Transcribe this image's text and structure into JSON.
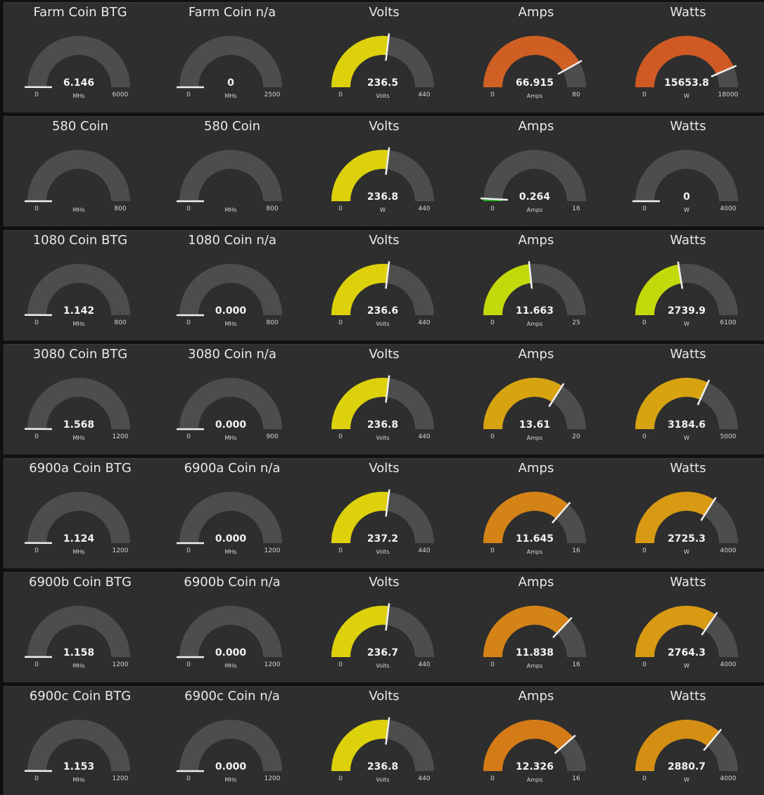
{
  "colors": {
    "background": "#2e2e2e",
    "track": "#4d4d4d",
    "needle": "#f0f0f0",
    "green": "#1faa1f",
    "yellow": "#dcd10a",
    "lime": "#c4d90a",
    "amber": "#d7a310",
    "orange": "#d48317",
    "red_orange": "#cf5a23"
  },
  "groups": [
    {
      "widgets": [
        {
          "title": "Farm Coin BTG",
          "value": 6.146,
          "value_label": "6.146",
          "units": "MHs",
          "min": 0,
          "max": 6000,
          "min_label": "0",
          "max_label": "6000",
          "color": "#4d4d4d"
        },
        {
          "title": "Farm Coin n/a",
          "value": 0,
          "value_label": "0",
          "units": "MHs",
          "min": 0,
          "max": 2500,
          "min_label": "0",
          "max_label": "2500",
          "color": "#4d4d4d"
        },
        {
          "title": "Volts",
          "value": 236.5,
          "value_label": "236.5",
          "units": "Volts",
          "min": 0,
          "max": 440,
          "min_label": "0",
          "max_label": "440",
          "color": "#dcd10a"
        },
        {
          "title": "Amps",
          "value": 66.915,
          "value_label": "66.915",
          "units": "Amps",
          "min": 0,
          "max": 80,
          "min_label": "0",
          "max_label": "80",
          "color": "#cf5f22"
        },
        {
          "title": "Watts",
          "value": 15653.8,
          "value_label": "15653.8",
          "units": "W",
          "min": 0,
          "max": 18000,
          "min_label": "0",
          "max_label": "18000",
          "color": "#cf5a23"
        }
      ]
    },
    {
      "widgets": [
        {
          "title": "580 Coin",
          "value": 0,
          "value_label": "",
          "units": "MHs",
          "min": 0,
          "max": 800,
          "min_label": "0",
          "max_label": "800",
          "color": "#4d4d4d"
        },
        {
          "title": "580 Coin",
          "value": 0,
          "value_label": "",
          "units": "MHs",
          "min": 0,
          "max": 800,
          "min_label": "0",
          "max_label": "800",
          "color": "#4d4d4d"
        },
        {
          "title": "Volts",
          "value": 236.8,
          "value_label": "236.8",
          "units": "W",
          "min": 0,
          "max": 440,
          "min_label": "0",
          "max_label": "440",
          "color": "#dcd10a"
        },
        {
          "title": "Amps",
          "value": 0.264,
          "value_label": "0.264",
          "units": "Amps",
          "min": 0,
          "max": 16,
          "min_label": "0",
          "max_label": "16",
          "color": "#1faa1f"
        },
        {
          "title": "Watts",
          "value": 0,
          "value_label": "0",
          "units": "W",
          "min": 0,
          "max": 4000,
          "min_label": "0",
          "max_label": "4000",
          "color": "#4d4d4d"
        }
      ]
    },
    {
      "widgets": [
        {
          "title": "1080 Coin BTG",
          "value": 1.142,
          "value_label": "1.142",
          "units": "MHs",
          "min": 0,
          "max": 800,
          "min_label": "0",
          "max_label": "800",
          "color": "#4d4d4d"
        },
        {
          "title": "1080 Coin n/a",
          "value": 0,
          "value_label": "0.000",
          "units": "MHs",
          "min": 0,
          "max": 800,
          "min_label": "0",
          "max_label": "800",
          "color": "#4d4d4d"
        },
        {
          "title": "Volts",
          "value": 236.6,
          "value_label": "236.6",
          "units": "Volts",
          "min": 0,
          "max": 440,
          "min_label": "0",
          "max_label": "440",
          "color": "#dcd10a"
        },
        {
          "title": "Amps",
          "value": 11.663,
          "value_label": "11.663",
          "units": "Amps",
          "min": 0,
          "max": 25,
          "min_label": "0",
          "max_label": "25",
          "color": "#c4d90a"
        },
        {
          "title": "Watts",
          "value": 2739.9,
          "value_label": "2739.9",
          "units": "W",
          "min": 0,
          "max": 6100,
          "min_label": "0",
          "max_label": "6100",
          "color": "#c4d90a"
        }
      ]
    },
    {
      "widgets": [
        {
          "title": "3080 Coin BTG",
          "value": 1.568,
          "value_label": "1.568",
          "units": "MHs",
          "min": 0,
          "max": 1200,
          "min_label": "0",
          "max_label": "1200",
          "color": "#4d4d4d"
        },
        {
          "title": "3080 Coin n/a",
          "value": 0,
          "value_label": "0.000",
          "units": "MHs",
          "min": 0,
          "max": 900,
          "min_label": "0",
          "max_label": "900",
          "color": "#4d4d4d"
        },
        {
          "title": "Volts",
          "value": 236.8,
          "value_label": "236.8",
          "units": "Volts",
          "min": 0,
          "max": 440,
          "min_label": "0",
          "max_label": "440",
          "color": "#dcd10a"
        },
        {
          "title": "Amps",
          "value": 13.61,
          "value_label": "13.61",
          "units": "Amps",
          "min": 0,
          "max": 20,
          "min_label": "0",
          "max_label": "20",
          "color": "#d7a310"
        },
        {
          "title": "Watts",
          "value": 3184.6,
          "value_label": "3184.6",
          "units": "W",
          "min": 0,
          "max": 5000,
          "min_label": "0",
          "max_label": "5000",
          "color": "#d7a310"
        }
      ]
    },
    {
      "widgets": [
        {
          "title": "6900a Coin BTG",
          "value": 1.124,
          "value_label": "1.124",
          "units": "MHs",
          "min": 0,
          "max": 1200,
          "min_label": "0",
          "max_label": "1200",
          "color": "#4d4d4d"
        },
        {
          "title": "6900a Coin n/a",
          "value": 0,
          "value_label": "0.000",
          "units": "MHs",
          "min": 0,
          "max": 1200,
          "min_label": "0",
          "max_label": "1200",
          "color": "#4d4d4d"
        },
        {
          "title": "Volts",
          "value": 237.2,
          "value_label": "237.2",
          "units": "Volts",
          "min": 0,
          "max": 440,
          "min_label": "0",
          "max_label": "440",
          "color": "#dcd10a"
        },
        {
          "title": "Amps",
          "value": 11.645,
          "value_label": "11.645",
          "units": "Amps",
          "min": 0,
          "max": 16,
          "min_label": "0",
          "max_label": "16",
          "color": "#d48317"
        },
        {
          "title": "Watts",
          "value": 2725.3,
          "value_label": "2725.3",
          "units": "W",
          "min": 0,
          "max": 4000,
          "min_label": "0",
          "max_label": "4000",
          "color": "#d79a12"
        }
      ]
    },
    {
      "widgets": [
        {
          "title": "6900b Coin BTG",
          "value": 1.158,
          "value_label": "1.158",
          "units": "MHs",
          "min": 0,
          "max": 1200,
          "min_label": "0",
          "max_label": "1200",
          "color": "#4d4d4d"
        },
        {
          "title": "6900b Coin n/a",
          "value": 0,
          "value_label": "0.000",
          "units": "MHs",
          "min": 0,
          "max": 1200,
          "min_label": "0",
          "max_label": "1200",
          "color": "#4d4d4d"
        },
        {
          "title": "Volts",
          "value": 236.7,
          "value_label": "236.7",
          "units": "Volts",
          "min": 0,
          "max": 440,
          "min_label": "0",
          "max_label": "440",
          "color": "#dcd10a"
        },
        {
          "title": "Amps",
          "value": 11.838,
          "value_label": "11.838",
          "units": "Amps",
          "min": 0,
          "max": 16,
          "min_label": "0",
          "max_label": "16",
          "color": "#d48317"
        },
        {
          "title": "Watts",
          "value": 2764.3,
          "value_label": "2764.3",
          "units": "W",
          "min": 0,
          "max": 4000,
          "min_label": "0",
          "max_label": "4000",
          "color": "#d79a12"
        }
      ]
    },
    {
      "widgets": [
        {
          "title": "6900c Coin BTG",
          "value": 1.153,
          "value_label": "1.153",
          "units": "MHs",
          "min": 0,
          "max": 1200,
          "min_label": "0",
          "max_label": "1200",
          "color": "#4d4d4d"
        },
        {
          "title": "6900c Coin n/a",
          "value": 0,
          "value_label": "0.000",
          "units": "MHs",
          "min": 0,
          "max": 1200,
          "min_label": "0",
          "max_label": "1200",
          "color": "#4d4d4d"
        },
        {
          "title": "Volts",
          "value": 236.8,
          "value_label": "236.8",
          "units": "Volts",
          "min": 0,
          "max": 440,
          "min_label": "0",
          "max_label": "440",
          "color": "#dcd10a"
        },
        {
          "title": "Amps",
          "value": 12.326,
          "value_label": "12.326",
          "units": "Amps",
          "min": 0,
          "max": 16,
          "min_label": "0",
          "max_label": "16",
          "color": "#d47a17"
        },
        {
          "title": "Watts",
          "value": 2880.7,
          "value_label": "2880.7",
          "units": "W",
          "min": 0,
          "max": 4000,
          "min_label": "0",
          "max_label": "4000",
          "color": "#d48e14"
        }
      ]
    }
  ]
}
